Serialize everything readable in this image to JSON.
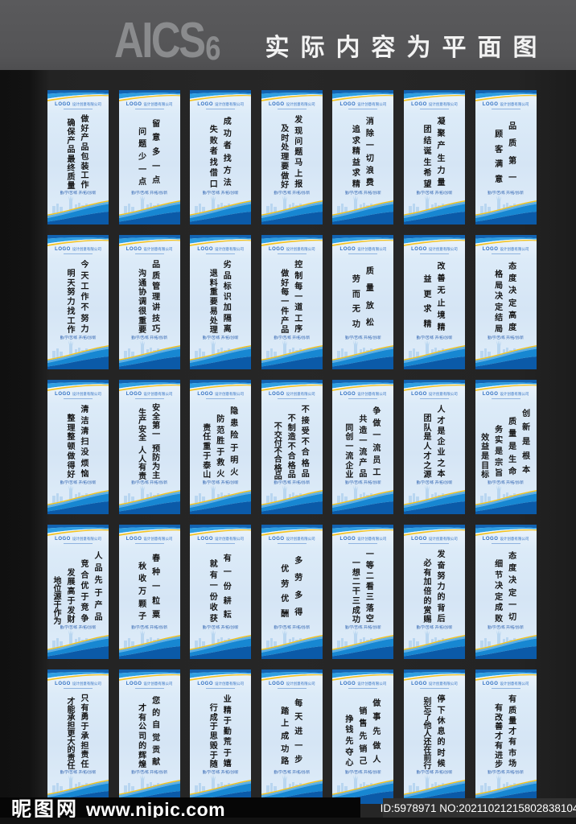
{
  "header": {
    "brand": "AICS",
    "brand_num": "6",
    "title": "实际内容为平面图"
  },
  "banner_common": {
    "logo_text": "LOGO",
    "company_text": "设计创意有限公司",
    "footer_text": "勤/学/苦/练  开/拓/创/新"
  },
  "colors": {
    "header_bg": "#545456",
    "page_bg": "#232323",
    "banner_body": "#d9e8f6",
    "banner_blue_dark": "#1263b2",
    "banner_blue_bright": "#2f9fe2",
    "accent_yellow": "#f3c320",
    "wave_mid": "#1787d2",
    "wave_deep": "#0b5aa8",
    "skyline_blue": "#aed0ee"
  },
  "rows": [
    [
      {
        "columns": [
          "做好产品包装工作",
          "确保产品最终质量"
        ]
      },
      {
        "columns": [
          "留意多一点",
          "问题少一点"
        ]
      },
      {
        "columns": [
          "成功者找方法",
          "失败者找借口"
        ]
      },
      {
        "columns": [
          "发现问题马上报",
          "及时处理要做好"
        ]
      },
      {
        "columns": [
          "消除一切浪费",
          "追求精益求精"
        ]
      },
      {
        "columns": [
          "凝聚产生力量",
          "团结诞生希望"
        ]
      },
      {
        "columns": [
          "品质第一",
          "顾客满意"
        ]
      }
    ],
    [
      {
        "columns": [
          "今天工作不努力",
          "明天努力找工作"
        ]
      },
      {
        "columns": [
          "品质管理讲技巧",
          "沟通协调很重要"
        ]
      },
      {
        "columns": [
          "劣品标识加隔离",
          "退料重要易处理"
        ]
      },
      {
        "columns": [
          "控制每一道工序",
          "做好每一件产品"
        ]
      },
      {
        "columns": [
          "质量放松",
          "劳而无功"
        ]
      },
      {
        "columns": [
          "改善无止境精",
          "益更求精"
        ]
      },
      {
        "columns": [
          "态度决定高度",
          "格局决定结局"
        ]
      }
    ],
    [
      {
        "columns": [
          "清洁清扫没烦恼",
          "整理整顿做得好"
        ]
      },
      {
        "columns": [
          "安全第一 预防为主",
          "生产安全 人人有责"
        ]
      },
      {
        "columns": [
          "隐患险于明火",
          "防范胜于救火",
          "责任重于泰山"
        ]
      },
      {
        "columns": [
          "不接受不合格品",
          "不制造不合格品",
          "不交付不合格品"
        ]
      },
      {
        "columns": [
          "争做一流员工",
          "共造一流产品",
          "同创一流企业"
        ]
      },
      {
        "columns": [
          "人才是企业之本",
          "团队是人才之源"
        ]
      },
      {
        "columns": [
          "创新是根本",
          "质量是生命",
          "务实是宗旨",
          "效益是目标"
        ]
      }
    ],
    [
      {
        "columns": [
          "人品先于产品",
          "竞合优于竞争",
          "发展高于发财",
          "地位源于作为"
        ]
      },
      {
        "columns": [
          "春种一粒粟",
          "秋收万颗子"
        ]
      },
      {
        "columns": [
          "有一份耕耘",
          "就有一份收获"
        ]
      },
      {
        "columns": [
          "多劳多得",
          "优劳优酬"
        ]
      },
      {
        "columns": [
          "一等二看三落空",
          "一想二干三成功"
        ]
      },
      {
        "columns": [
          "发奋努力的背后",
          "必有加倍的赏赐"
        ]
      },
      {
        "columns": [
          "态度决定一切",
          "细节决定成败"
        ]
      }
    ],
    [
      {
        "columns": [
          "只有勇于承担责任",
          "才能承担更大的责任"
        ]
      },
      {
        "columns": [
          "您的自觉贡献",
          "才有公司的辉煌"
        ]
      },
      {
        "columns": [
          "业精于勤荒于嬉",
          "行成于思毁于随"
        ]
      },
      {
        "columns": [
          "每天进一步",
          "踏上成功路"
        ]
      },
      {
        "columns": [
          "做事先做人",
          "销售先销己",
          "挣钱先夺心"
        ]
      },
      {
        "columns": [
          "停下休息的时候",
          "别忘了他人还在前行"
        ]
      },
      {
        "columns": [
          "有质量才有市场",
          "有改善才有进步"
        ]
      }
    ]
  ],
  "watermark": {
    "site_name": "昵图网",
    "site_url": "www.nipic.com",
    "id_text": "ID:5978971 NO:20211021215802838104"
  }
}
